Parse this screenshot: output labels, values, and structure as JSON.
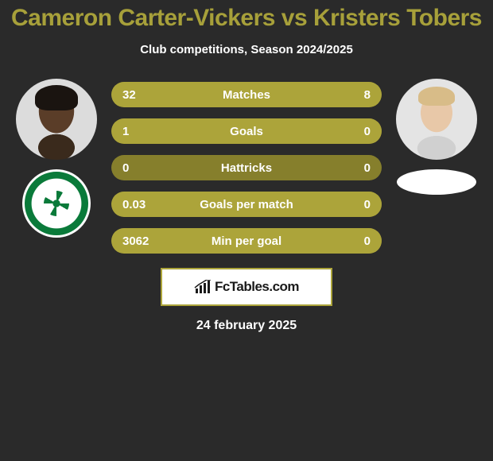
{
  "title": "Cameron Carter-Vickers vs Kristers Tobers",
  "title_color": "#a7a03a",
  "subtitle": "Club competitions, Season 2024/2025",
  "background": "#2a2a2a",
  "bar_track_color": "#867f2c",
  "bar_fill_color": "#aca43a",
  "text_color": "#ffffff",
  "brand": {
    "label": "FcTables.com",
    "border_color": "#aca43a",
    "bg": "#ffffff"
  },
  "date": "24 february 2025",
  "rows": [
    {
      "label": "Matches",
      "left": "32",
      "right": "8",
      "left_pct": 80,
      "right_pct": 20
    },
    {
      "label": "Goals",
      "left": "1",
      "right": "0",
      "left_pct": 100,
      "right_pct": 0
    },
    {
      "label": "Hattricks",
      "left": "0",
      "right": "0",
      "left_pct": 0,
      "right_pct": 0
    },
    {
      "label": "Goals per match",
      "left": "0.03",
      "right": "0",
      "left_pct": 100,
      "right_pct": 0
    },
    {
      "label": "Min per goal",
      "left": "3062",
      "right": "0",
      "left_pct": 100,
      "right_pct": 0
    }
  ]
}
